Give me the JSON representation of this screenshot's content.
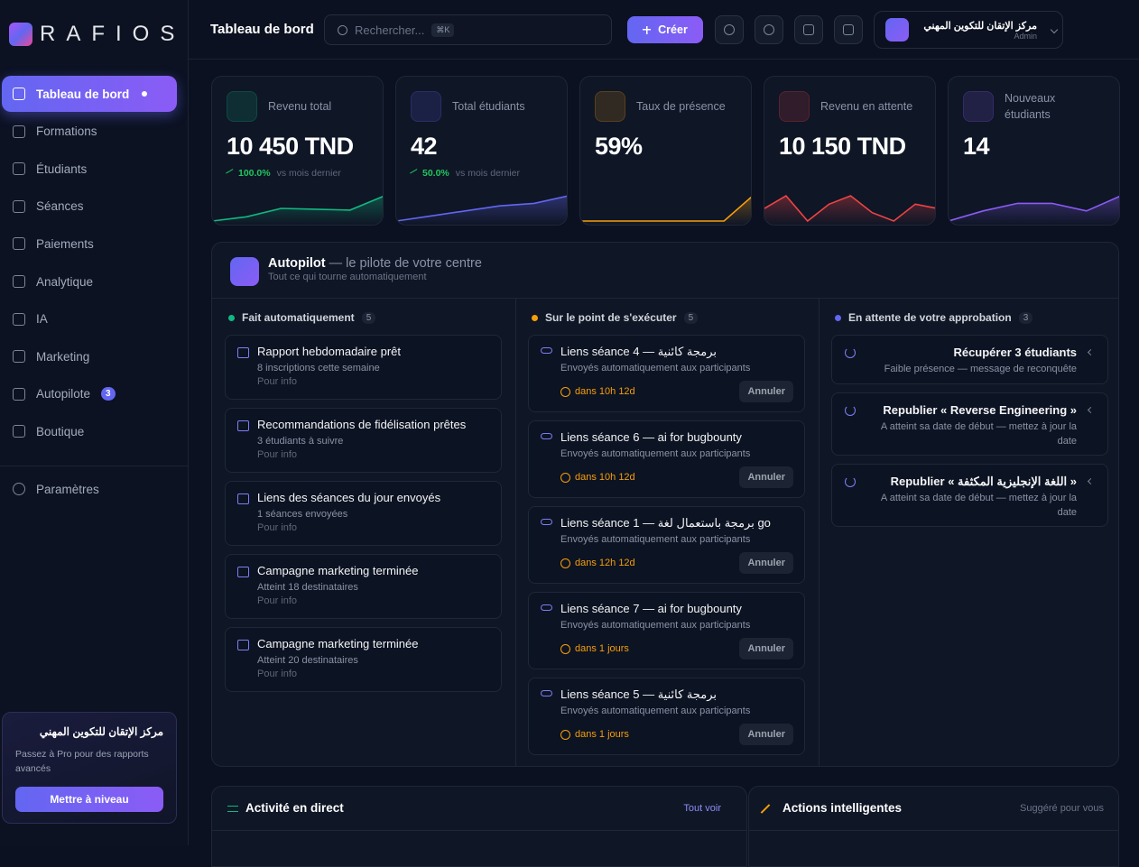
{
  "brand": "RAFIOS",
  "header": {
    "title": "Tableau de bord",
    "search_placeholder": "Rechercher...",
    "search_shortcut": "⌘K",
    "create": "Créer",
    "user_name": "مركز الإتقان للتكوين المهني",
    "user_role": "Admin"
  },
  "sidebar": {
    "items": [
      {
        "label": "Tableau de bord"
      },
      {
        "label": "Formations"
      },
      {
        "label": "Étudiants"
      },
      {
        "label": "Séances"
      },
      {
        "label": "Paiements"
      },
      {
        "label": "Analytique"
      },
      {
        "label": "IA"
      },
      {
        "label": "Marketing"
      },
      {
        "label": "Autopilote",
        "badge": 3
      },
      {
        "label": "Boutique"
      }
    ],
    "settings": "Paramètres",
    "promo": {
      "title": "مركز الإتقان للتكوين المهني",
      "text": "Passez à Pro pour des rapports avancés",
      "button": "Mettre à niveau"
    }
  },
  "stats": [
    {
      "label": "Revenu total",
      "value": "10 450 TND",
      "change": "100.0%",
      "change_note": "vs mois dernier",
      "color": "#10b981",
      "trend": [
        1,
        2,
        4,
        3.8,
        3.6,
        7
      ]
    },
    {
      "label": "Total étudiants",
      "value": "42",
      "change": "50.0%",
      "change_note": "vs mois dernier",
      "color": "#6366f1",
      "trend": [
        1,
        2,
        3,
        4,
        4.5,
        6
      ]
    },
    {
      "label": "Taux de présence",
      "value": "59%",
      "color": "#f59e0b",
      "trend": [
        0,
        0,
        0,
        0,
        0,
        0,
        6
      ]
    },
    {
      "label": "Revenu en attente",
      "value": "10 150 TND",
      "color": "#ef4444",
      "trend": [
        4,
        7,
        1,
        5,
        7,
        3,
        1,
        5,
        4
      ]
    },
    {
      "label": "Nouveaux étudiants",
      "value": "14",
      "color": "#8b5cf6",
      "trend": [
        1,
        3,
        4.5,
        4.5,
        3,
        6
      ]
    }
  ],
  "autopilot": {
    "title": "Autopilot",
    "subtitle": "— le pilote de votre centre",
    "caption": "Tout ce qui tourne automatiquement",
    "columns": [
      {
        "title": "Fait automatiquement",
        "count": 5,
        "color": "#10b981",
        "items": [
          {
            "title": "Rapport hebdomadaire prêt",
            "detail": "8 inscriptions cette semaine",
            "note": "Pour info"
          },
          {
            "title": "Recommandations de fidélisation prêtes",
            "detail": "3 étudiants à suivre",
            "note": "Pour info"
          },
          {
            "title": "Liens des séances du jour envoyés",
            "detail": "1 séances envoyées",
            "note": "Pour info"
          },
          {
            "title": "Campagne marketing terminée",
            "detail": "Atteint 18 destinataires",
            "note": "Pour info"
          },
          {
            "title": "Campagne marketing terminée",
            "detail": "Atteint 20 destinataires",
            "note": "Pour info"
          }
        ]
      },
      {
        "title": "Sur le point de s'exécuter",
        "count": 5,
        "color": "#f59e0b",
        "items": [
          {
            "title": "Liens séance 4 — برمجة كائنية",
            "detail": "Envoyés automatiquement aux participants",
            "time": "dans 10h 12d",
            "action": "Annuler"
          },
          {
            "title": "Liens séance 6 — ai for bugbounty",
            "detail": "Envoyés automatiquement aux participants",
            "time": "dans 10h 12d",
            "action": "Annuler"
          },
          {
            "title": "Liens séance 1 — برمجة باستعمال لغة go",
            "detail": "Envoyés automatiquement aux participants",
            "time": "dans 12h 12d",
            "action": "Annuler"
          },
          {
            "title": "Liens séance 7 — ai for bugbounty",
            "detail": "Envoyés automatiquement aux participants",
            "time": "dans 1 jours",
            "action": "Annuler"
          },
          {
            "title": "Liens séance 5 — برمجة كائنية",
            "detail": "Envoyés automatiquement aux participants",
            "time": "dans 1 jours",
            "action": "Annuler"
          }
        ]
      },
      {
        "title": "En attente de votre approbation",
        "count": 3,
        "color": "#6366f1",
        "items": [
          {
            "title": "Récupérer 3 étudiants",
            "detail": "Faible présence — message de reconquête"
          },
          {
            "title": "Republier « Reverse Engineering »",
            "detail": "A atteint sa date de début — mettez à jour la date"
          },
          {
            "title": "Republier « اللغة الإنجليزية المكثفة »",
            "detail": "A atteint sa date de début — mettez à jour la date"
          }
        ]
      }
    ]
  },
  "activity": {
    "title": "Activité en direct",
    "link": "Tout voir"
  },
  "actions": {
    "title": "Actions intelligentes",
    "note": "Suggéré pour vous"
  }
}
